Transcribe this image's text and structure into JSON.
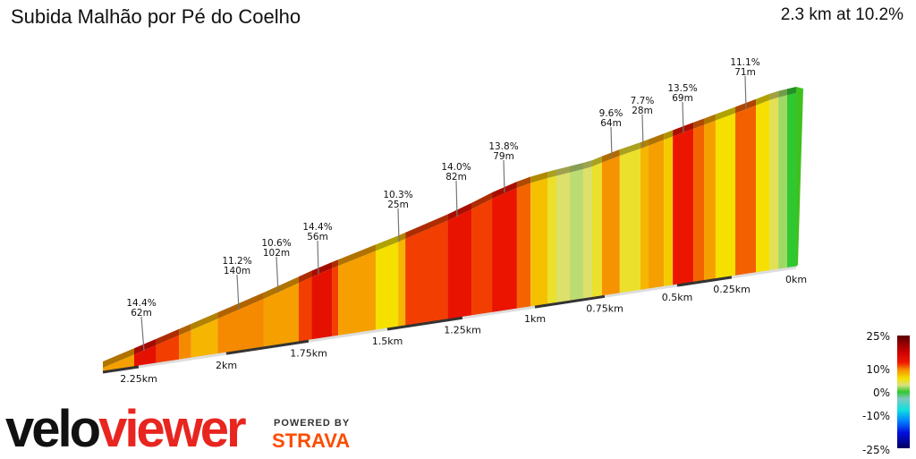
{
  "header": {
    "title": "Subida Malhão por Pé do Coelho",
    "summary": "2.3 km at 10.2%"
  },
  "chart_data": {
    "type": "area",
    "title": "Subida Malhão por Pé do Coelho",
    "x_axis": {
      "ticks": [
        "2.25km",
        "2km",
        "1.75km",
        "1.5km",
        "1.25km",
        "1km",
        "0.75km",
        "0.5km",
        "0.25km",
        "0km"
      ],
      "tick_values": [
        2.25,
        2,
        1.75,
        1.5,
        1.25,
        1,
        0.75,
        0.5,
        0.25,
        0
      ],
      "direction": "distance remaining, decreasing left to right"
    },
    "segments_km_remaining": [
      {
        "from": 2.33,
        "to": 2.26,
        "grade": 9
      },
      {
        "from": 2.26,
        "to": 2.2,
        "grade": 14.4
      },
      {
        "from": 2.2,
        "to": 2.135,
        "grade": 12
      },
      {
        "from": 2.135,
        "to": 2.1,
        "grade": 10
      },
      {
        "from": 2.1,
        "to": 2.025,
        "grade": 8
      },
      {
        "from": 2.025,
        "to": 1.886,
        "grade": 10
      },
      {
        "from": 1.886,
        "to": 1.78,
        "grade": 9
      },
      {
        "from": 1.78,
        "to": 1.74,
        "grade": 12
      },
      {
        "from": 1.74,
        "to": 1.676,
        "grade": 14.4
      },
      {
        "from": 1.676,
        "to": 1.656,
        "grade": 12
      },
      {
        "from": 1.656,
        "to": 1.537,
        "grade": 9
      },
      {
        "from": 1.537,
        "to": 1.464,
        "grade": 6
      },
      {
        "from": 1.464,
        "to": 1.44,
        "grade": 8
      },
      {
        "from": 1.44,
        "to": 1.3,
        "grade": 12
      },
      {
        "from": 1.3,
        "to": 1.219,
        "grade": 14
      },
      {
        "from": 1.219,
        "to": 1.148,
        "grade": 12
      },
      {
        "from": 1.148,
        "to": 1.062,
        "grade": 13.8
      },
      {
        "from": 1.062,
        "to": 1.015,
        "grade": 11
      },
      {
        "from": 1.015,
        "to": 0.955,
        "grade": 7.5
      },
      {
        "from": 0.955,
        "to": 0.923,
        "grade": 5
      },
      {
        "from": 0.923,
        "to": 0.875,
        "grade": 3.5
      },
      {
        "from": 0.875,
        "to": 0.827,
        "grade": 2.5
      },
      {
        "from": 0.827,
        "to": 0.795,
        "grade": 3.5
      },
      {
        "from": 0.795,
        "to": 0.76,
        "grade": 5
      },
      {
        "from": 0.76,
        "to": 0.698,
        "grade": 9.6
      },
      {
        "from": 0.698,
        "to": 0.627,
        "grade": 5
      },
      {
        "from": 0.627,
        "to": 0.599,
        "grade": 8
      },
      {
        "from": 0.599,
        "to": 0.546,
        "grade": 9
      },
      {
        "from": 0.546,
        "to": 0.515,
        "grade": 7
      },
      {
        "from": 0.515,
        "to": 0.426,
        "grade": 13.5
      },
      {
        "from": 0.426,
        "to": 0.377,
        "grade": 11
      },
      {
        "from": 0.377,
        "to": 0.324,
        "grade": 9
      },
      {
        "from": 0.324,
        "to": 0.236,
        "grade": 6
      },
      {
        "from": 0.236,
        "to": 0.156,
        "grade": 11.1
      },
      {
        "from": 0.156,
        "to": 0.104,
        "grade": 6
      },
      {
        "from": 0.104,
        "to": 0.069,
        "grade": 4
      },
      {
        "from": 0.069,
        "to": 0.035,
        "grade": 2
      },
      {
        "from": 0.035,
        "to": 0,
        "grade": 0
      }
    ],
    "annotations": [
      {
        "grade": "14.4%",
        "length": "62m"
      },
      {
        "grade": "11.2%",
        "length": "140m"
      },
      {
        "grade": "10.6%",
        "length": "102m"
      },
      {
        "grade": "14.4%",
        "length": "56m"
      },
      {
        "grade": "10.3%",
        "length": "25m"
      },
      {
        "grade": "14.0%",
        "length": "82m"
      },
      {
        "grade": "13.8%",
        "length": "79m"
      },
      {
        "grade": "9.6%",
        "length": "64m"
      },
      {
        "grade": "7.7%",
        "length": "28m"
      },
      {
        "grade": "13.5%",
        "length": "69m"
      },
      {
        "grade": "11.1%",
        "length": "71m"
      }
    ],
    "legend": {
      "labels": [
        "25%",
        "10%",
        "0%",
        "-10%",
        "-25%"
      ],
      "placement": "bottom-right",
      "stops": [
        {
          "g": 25,
          "c": "#5a0000"
        },
        {
          "g": 18,
          "c": "#c80000"
        },
        {
          "g": 13,
          "c": "#f01800"
        },
        {
          "g": 10,
          "c": "#f58a00"
        },
        {
          "g": 6,
          "c": "#f5e000"
        },
        {
          "g": 3,
          "c": "#d8e080"
        },
        {
          "g": 0,
          "c": "#30c830"
        },
        {
          "g": -3,
          "c": "#80c8c0"
        },
        {
          "g": -8,
          "c": "#10e0e0"
        },
        {
          "g": -13,
          "c": "#0080ff"
        },
        {
          "g": -18,
          "c": "#0010e0"
        },
        {
          "g": -25,
          "c": "#000060"
        }
      ]
    }
  },
  "branding": {
    "logo_velo": "velo",
    "logo_viewer": "viewer",
    "powered_by": "POWERED BY",
    "strava": "STRAVA"
  }
}
